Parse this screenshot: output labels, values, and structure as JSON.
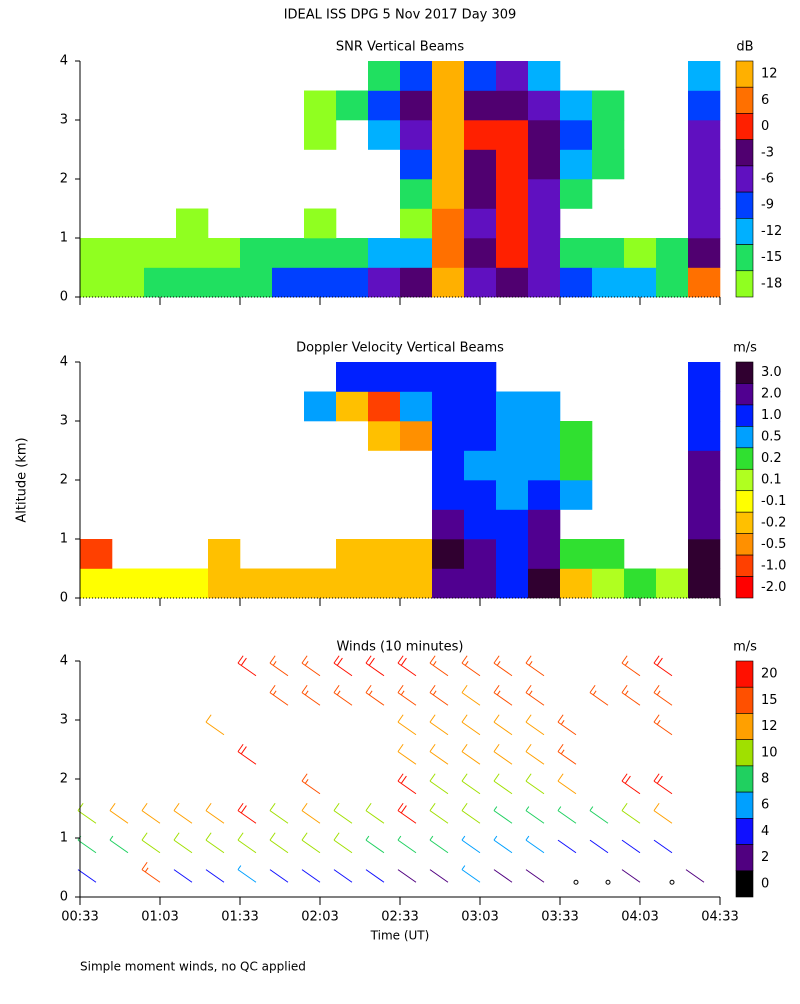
{
  "title": "IDEAL ISS DPG    5 Nov 2017 Day 309",
  "footnote": "Simple moment winds, no QC applied",
  "chart_data": [
    {
      "type": "heatmap",
      "title": "SNR Vertical Beams",
      "xlim": [
        33,
        273
      ],
      "ylim": [
        0,
        4
      ],
      "yticks": [
        0,
        1,
        2,
        3,
        4
      ],
      "xbins": [
        33,
        45,
        57,
        69,
        81,
        93,
        105,
        117,
        129,
        141,
        153,
        165,
        177,
        189,
        201,
        213,
        225,
        237,
        249,
        261,
        273
      ],
      "ybins": [
        0,
        0.5,
        1,
        1.5,
        2,
        2.5,
        3,
        3.5,
        4
      ],
      "z": [
        [
          -17,
          -17,
          -15,
          -15,
          -15,
          -15,
          -9,
          -9,
          -9,
          -6,
          -3,
          12,
          -6,
          -3,
          -6,
          -9,
          -12,
          -12,
          -15,
          6
        ],
        [
          -17,
          -17,
          -17,
          -17,
          -17,
          -15,
          -15,
          -15,
          -15,
          -12,
          -12,
          6,
          -3,
          0,
          -6,
          -15,
          -15,
          -17,
          -15,
          -3
        ],
        [
          null,
          null,
          null,
          -17,
          null,
          null,
          null,
          -17,
          null,
          null,
          -17,
          6,
          -6,
          0,
          -6,
          null,
          null,
          null,
          null,
          -6
        ],
        [
          null,
          null,
          null,
          null,
          null,
          null,
          null,
          null,
          null,
          null,
          -15,
          12,
          -3,
          0,
          -6,
          -15,
          null,
          null,
          null,
          -6
        ],
        [
          null,
          null,
          null,
          null,
          null,
          null,
          null,
          null,
          null,
          null,
          -9,
          12,
          -3,
          0,
          -3,
          -12,
          -15,
          null,
          null,
          -6
        ],
        [
          null,
          null,
          null,
          null,
          null,
          null,
          null,
          -17,
          null,
          -12,
          -6,
          12,
          0,
          0,
          -3,
          -9,
          -15,
          null,
          null,
          -6
        ],
        [
          null,
          null,
          null,
          null,
          null,
          null,
          null,
          -17,
          -15,
          -9,
          -3,
          12,
          -3,
          -3,
          -6,
          -12,
          -15,
          null,
          null,
          -9
        ],
        [
          null,
          null,
          null,
          null,
          null,
          null,
          null,
          null,
          null,
          -15,
          -9,
          12,
          -9,
          -6,
          -12,
          null,
          null,
          null,
          null,
          -12
        ]
      ],
      "colorbar": {
        "label": "dB",
        "ticks": [
          12,
          6,
          0,
          -3,
          -6,
          -9,
          -12,
          -15,
          -18
        ],
        "colors": [
          "#ffb000",
          "#ff7000",
          "#ff2000",
          "#500070",
          "#6010c0",
          "#0040ff",
          "#00b0ff",
          "#20e060",
          "#90ff20"
        ]
      }
    },
    {
      "type": "heatmap",
      "title": "Doppler Velocity Vertical Beams",
      "y_label": "Altitude (km)",
      "xlim": [
        33,
        273
      ],
      "ylim": [
        0,
        4
      ],
      "yticks": [
        0,
        1,
        2,
        3,
        4
      ],
      "xbins": [
        33,
        45,
        57,
        69,
        81,
        93,
        105,
        117,
        129,
        141,
        153,
        165,
        177,
        189,
        201,
        213,
        225,
        237,
        249,
        261,
        273
      ],
      "ybins": [
        0,
        0.5,
        1,
        1.5,
        2,
        2.5,
        3,
        3.5,
        4
      ],
      "z": [
        [
          -0.1,
          -0.1,
          -0.1,
          -0.1,
          -0.2,
          -0.2,
          -0.2,
          -0.2,
          -0.2,
          -0.2,
          -0.2,
          2,
          2,
          1,
          3,
          -0.2,
          0.1,
          0.2,
          0.1,
          3
        ],
        [
          -1,
          null,
          null,
          null,
          -0.2,
          null,
          null,
          null,
          -0.2,
          -0.2,
          -0.2,
          3,
          2,
          1,
          2,
          0.2,
          0.2,
          null,
          null,
          3
        ],
        [
          null,
          null,
          null,
          null,
          null,
          null,
          null,
          null,
          null,
          null,
          null,
          2,
          1,
          1,
          2,
          null,
          null,
          null,
          null,
          2
        ],
        [
          null,
          null,
          null,
          null,
          null,
          null,
          null,
          null,
          null,
          null,
          null,
          1,
          1,
          0.5,
          1,
          0.5,
          null,
          null,
          null,
          2
        ],
        [
          null,
          null,
          null,
          null,
          null,
          null,
          null,
          null,
          null,
          null,
          null,
          1,
          0.5,
          0.5,
          0.5,
          0.2,
          null,
          null,
          null,
          2
        ],
        [
          null,
          null,
          null,
          null,
          null,
          null,
          null,
          null,
          null,
          -0.2,
          -0.5,
          1,
          1,
          0.5,
          0.5,
          0.2,
          null,
          null,
          null,
          1
        ],
        [
          null,
          null,
          null,
          null,
          null,
          null,
          null,
          0.5,
          -0.2,
          -1,
          0.5,
          1,
          1,
          0.5,
          0.5,
          null,
          null,
          null,
          null,
          1
        ],
        [
          null,
          null,
          null,
          null,
          null,
          null,
          null,
          null,
          1,
          1,
          1,
          1,
          1,
          null,
          null,
          null,
          null,
          null,
          null,
          1
        ]
      ],
      "colorbar": {
        "label": "m/s",
        "ticks": [
          {
            "value": 3,
            "label": "3.0"
          },
          {
            "value": 2,
            "label": "2.0"
          },
          {
            "value": 1,
            "label": "1.0"
          },
          0.5,
          0.2,
          0.1,
          -0.1,
          -0.2,
          -0.5,
          {
            "value": -1,
            "label": "-1.0"
          },
          {
            "value": -2,
            "label": "-2.0"
          }
        ],
        "colors": [
          "#300030",
          "#500090",
          "#0020ff",
          "#00a0ff",
          "#30e030",
          "#b0ff20",
          "#ffff00",
          "#ffc000",
          "#ff9000",
          "#ff4000",
          "#ff0000"
        ]
      }
    },
    {
      "type": "barbs",
      "title": "Winds (10 minutes)",
      "x_label": "Time (UT)",
      "xlim": [
        33,
        273
      ],
      "ylim": [
        0,
        4
      ],
      "yticks": [
        0,
        1,
        2,
        3,
        4
      ],
      "xticks": [
        {
          "value": 33,
          "label": "00:33"
        },
        {
          "value": 63,
          "label": "01:03"
        },
        {
          "value": 93,
          "label": "01:33"
        },
        {
          "value": 123,
          "label": "02:03"
        },
        {
          "value": 153,
          "label": "02:33"
        },
        {
          "value": 183,
          "label": "03:03"
        },
        {
          "value": 213,
          "label": "03:33"
        },
        {
          "value": 243,
          "label": "04:03"
        },
        {
          "value": 273,
          "label": "04:33"
        }
      ],
      "xbins": [
        33,
        45,
        57,
        69,
        81,
        93,
        105,
        117,
        129,
        141,
        153,
        165,
        177,
        189,
        201,
        213,
        225,
        237,
        249,
        261,
        273
      ],
      "ybins": [
        0,
        0.5,
        1,
        1.5,
        2,
        2.5,
        3,
        3.5,
        4
      ],
      "z": [
        [
          4,
          null,
          15,
          4,
          4,
          6,
          4,
          4,
          4,
          4,
          2,
          2,
          6,
          2,
          2,
          0,
          0,
          2,
          0,
          2
        ],
        [
          8,
          8,
          10,
          10,
          10,
          10,
          10,
          10,
          10,
          8,
          8,
          8,
          6,
          6,
          6,
          4,
          4,
          4,
          4,
          null
        ],
        [
          10,
          12,
          12,
          12,
          12,
          20,
          10,
          12,
          10,
          10,
          20,
          10,
          10,
          8,
          8,
          8,
          8,
          10,
          12,
          null
        ],
        [
          null,
          null,
          null,
          null,
          null,
          null,
          null,
          15,
          null,
          null,
          20,
          10,
          10,
          10,
          10,
          12,
          null,
          20,
          20,
          null
        ],
        [
          null,
          null,
          null,
          null,
          null,
          20,
          null,
          null,
          null,
          null,
          12,
          12,
          12,
          12,
          12,
          15,
          null,
          null,
          null,
          null
        ],
        [
          null,
          null,
          null,
          null,
          12,
          null,
          null,
          null,
          null,
          null,
          12,
          12,
          12,
          12,
          12,
          15,
          null,
          null,
          15,
          null
        ],
        [
          null,
          null,
          null,
          null,
          null,
          null,
          15,
          15,
          15,
          15,
          15,
          15,
          12,
          15,
          15,
          null,
          15,
          15,
          15,
          null
        ],
        [
          null,
          null,
          null,
          null,
          null,
          20,
          15,
          15,
          20,
          20,
          20,
          15,
          15,
          15,
          15,
          null,
          null,
          15,
          20,
          null
        ]
      ],
      "colorbar": {
        "label": "m/s",
        "ticks": [
          20,
          15,
          12,
          10,
          8,
          6,
          4,
          2,
          0
        ],
        "colors": [
          "#ff1000",
          "#ff5000",
          "#ffa000",
          "#a0e000",
          "#20d060",
          "#00a0ff",
          "#1010ff",
          "#500080",
          "#000000"
        ]
      }
    }
  ]
}
